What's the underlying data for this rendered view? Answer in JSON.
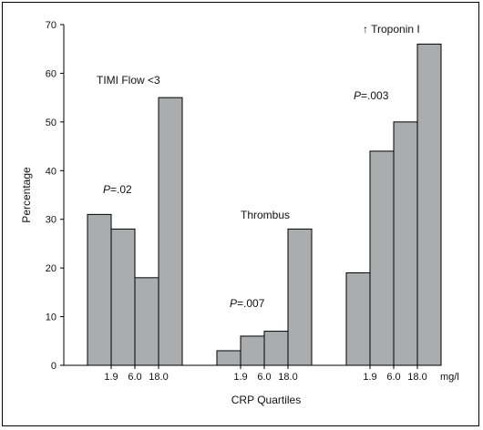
{
  "chart_data": {
    "type": "bar",
    "xlabel": "CRP Quartiles",
    "ylabel": "Percentage",
    "ylim": [
      0,
      70
    ],
    "yticks": [
      "0",
      "10",
      "20",
      "30",
      "40",
      "50",
      "60",
      "70"
    ],
    "x_unit": "mg/l",
    "grid": false,
    "groups": [
      {
        "name": "TIMI Flow <3",
        "p_prefix": "P",
        "p_value": "=.02",
        "values": [
          31,
          28,
          18,
          55
        ],
        "tick_labels": [
          "1.9",
          "6.0",
          "18.0"
        ]
      },
      {
        "name": "Thrombus",
        "p_prefix": "P",
        "p_value": "=.007",
        "values": [
          3,
          6,
          7,
          28
        ],
        "tick_labels": [
          "1.9",
          "6.0",
          "18.0"
        ]
      },
      {
        "name": "↑ Troponin I",
        "p_prefix": "P",
        "p_value": "=.003",
        "values": [
          19,
          44,
          50,
          66
        ],
        "tick_labels": [
          "1.9",
          "6.0",
          "18.0"
        ]
      }
    ],
    "bar_color": "#a9adad",
    "bar_stroke": "#000000"
  }
}
